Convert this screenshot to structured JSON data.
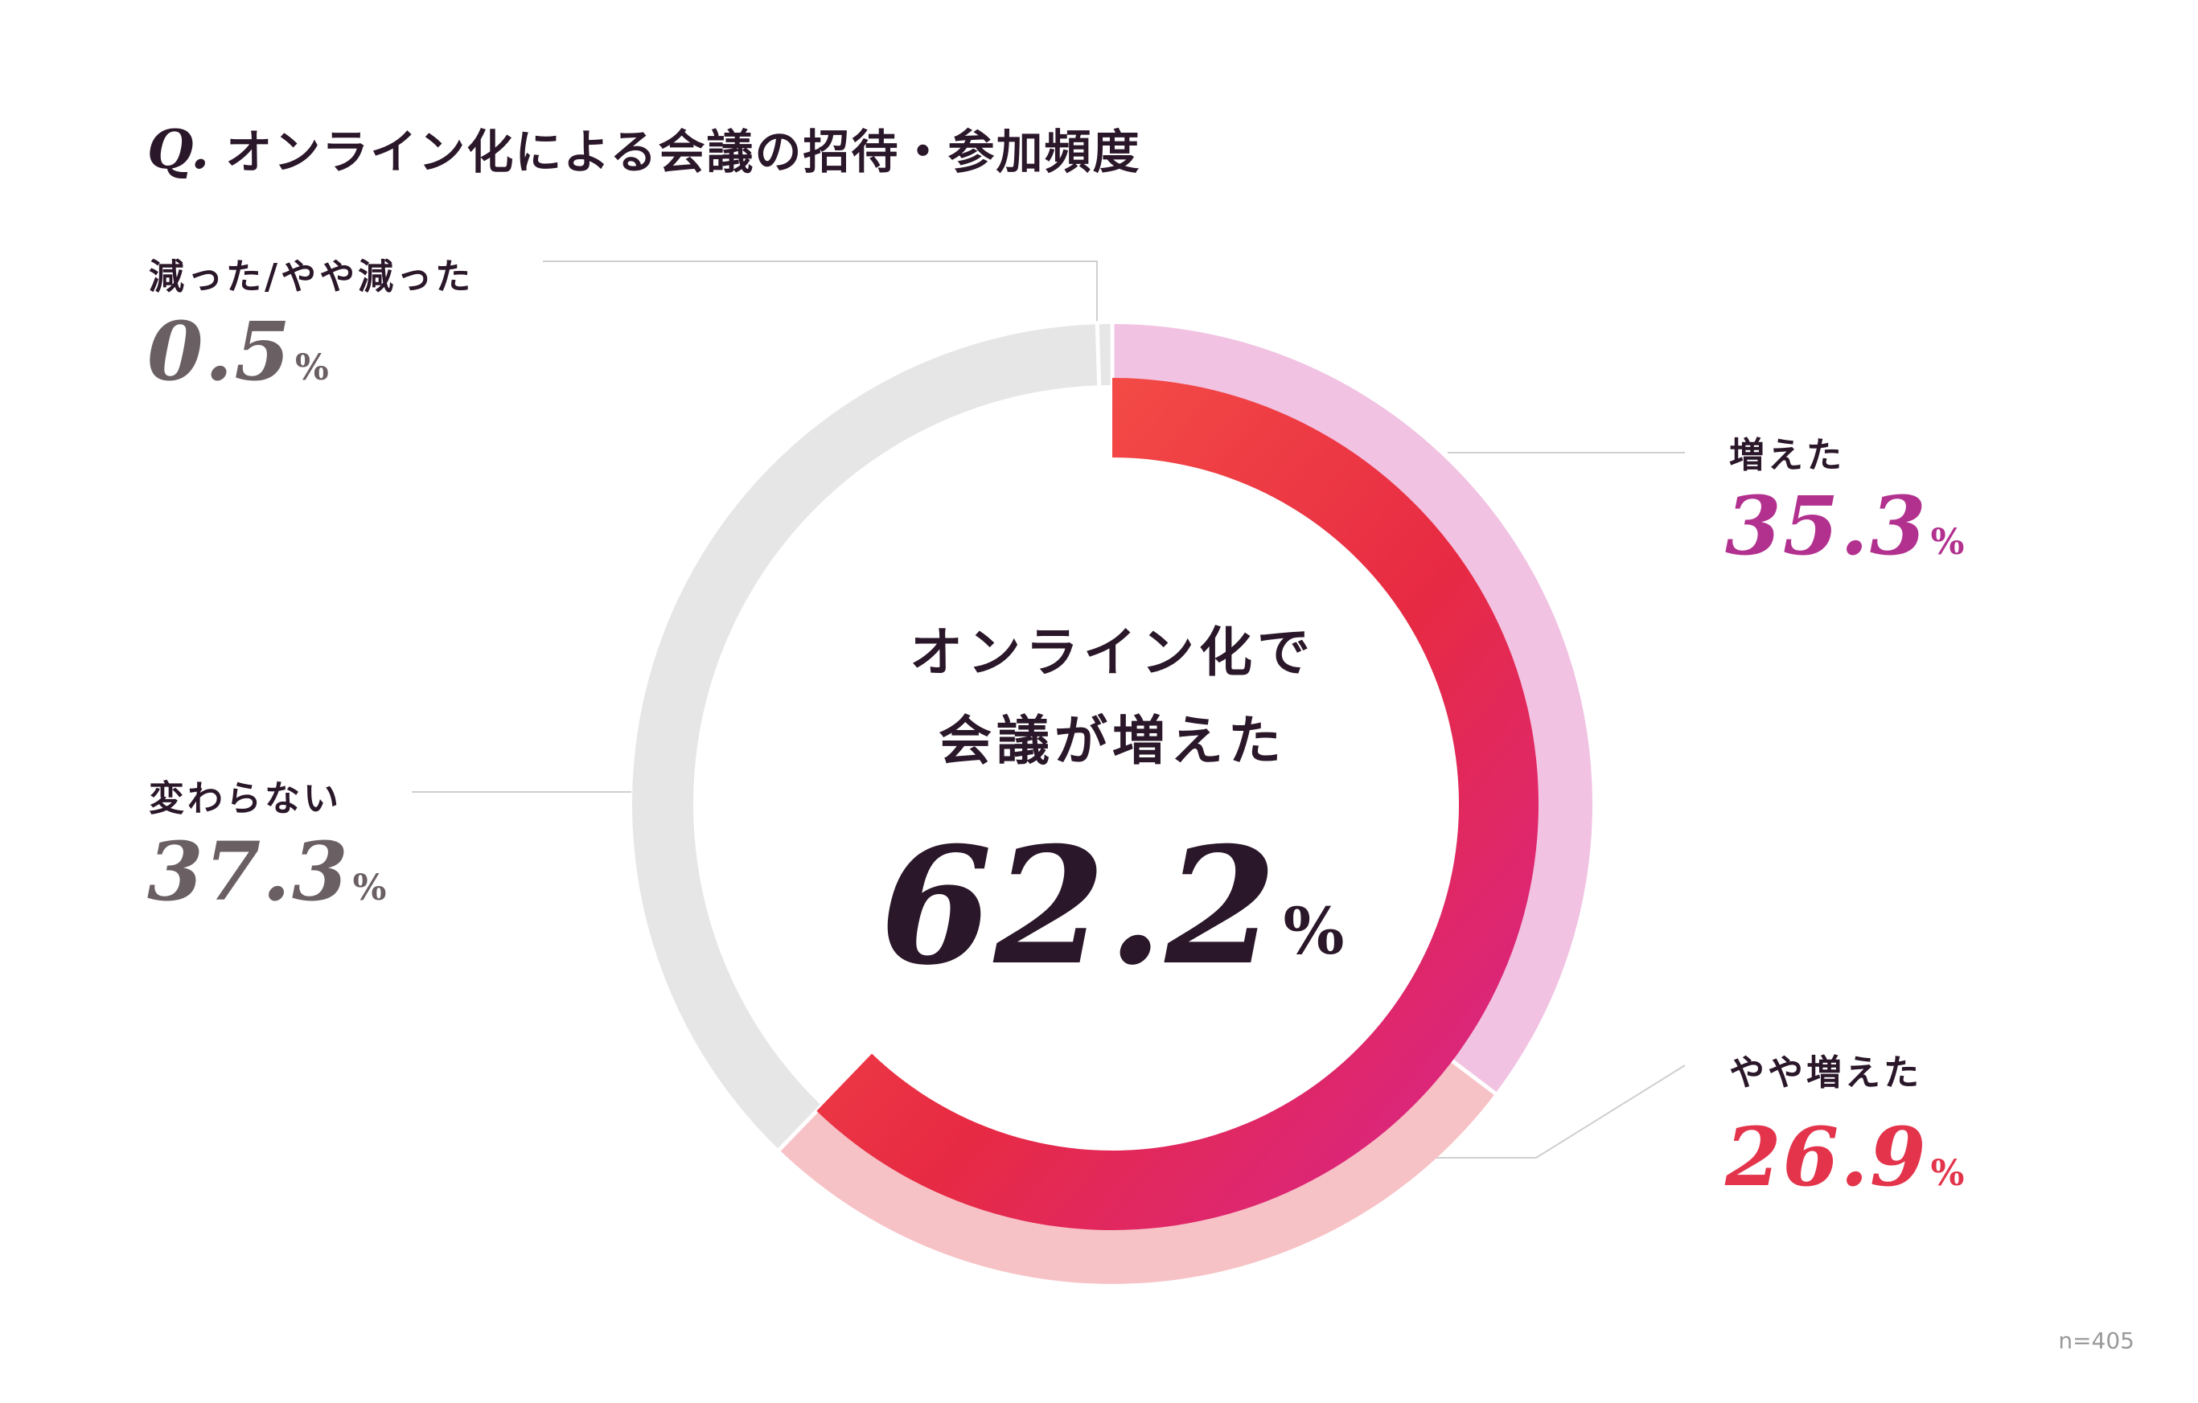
{
  "question": {
    "mark": "Q.",
    "text": "オンライン化による会議の招待・参加頻度"
  },
  "center": {
    "line1": "オンライン化で",
    "line2": "会議が増えた",
    "value": "62.2",
    "unit": "%"
  },
  "sample_size": "n=405",
  "colors": {
    "increased": "#f1c2e2",
    "slightly_increased": "#f7c2c6",
    "unchanged": "#e7e6e7",
    "decreased": "#e7e6e7",
    "inner_gradient": [
      "#fa5e47",
      "#e72a43",
      "#d52496"
    ],
    "pct_increased": "#b2318f",
    "pct_slightly_increased": "#e3344b",
    "pct_gray": "#6a5f62",
    "text_dark": "#2a1729"
  },
  "chart_data": {
    "type": "pie",
    "variant": "donut",
    "title": "オンライン化による会議の招待・参加頻度",
    "unit": "%",
    "slices": [
      {
        "label": "増えた",
        "value": 35.3
      },
      {
        "label": "やや増えた",
        "value": 26.9
      },
      {
        "label": "変わらない",
        "value": 37.3
      },
      {
        "label": "減った/やや減った",
        "value": 0.5
      }
    ],
    "highlight": {
      "label": "オンライン化で会議が増えた",
      "value": 62.2
    }
  },
  "labels": {
    "decreased": {
      "name": "減った/やや減った",
      "value": "0.5",
      "unit": "%"
    },
    "increased": {
      "name": "増えた",
      "value": "35.3",
      "unit": "%"
    },
    "unchanged": {
      "name": "変わらない",
      "value": "37.3",
      "unit": "%"
    },
    "slightly_increased": {
      "name": "やや増えた",
      "value": "26.9",
      "unit": "%"
    }
  }
}
